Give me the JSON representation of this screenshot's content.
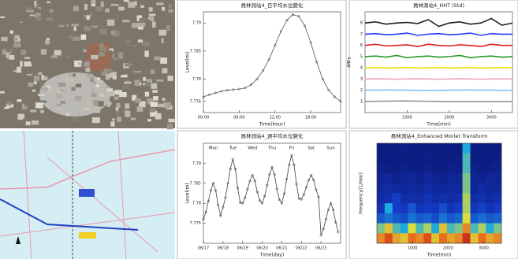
{
  "chart_data": [
    {
      "type": "line",
      "title": "員林測站4_日平均水位變化",
      "xlabel": "Time(hour)",
      "ylabel": "Level(m)",
      "color": "#555555",
      "x": [
        0,
        1,
        2,
        3,
        4,
        5,
        6,
        7,
        8,
        9,
        10,
        11,
        12,
        13,
        14,
        15,
        16,
        17,
        18,
        19,
        20,
        21,
        22,
        23
      ],
      "values": [
        7.7768,
        7.7772,
        7.7775,
        7.7778,
        7.778,
        7.7781,
        7.7782,
        7.7784,
        7.779,
        7.78,
        7.7815,
        7.7835,
        7.786,
        7.7885,
        7.7905,
        7.7915,
        7.7912,
        7.7895,
        7.7865,
        7.783,
        7.78,
        7.778,
        7.7768,
        7.776
      ],
      "xlim": [
        0,
        23
      ],
      "xticks": [
        {
          "value": 0,
          "label": "00:00"
        },
        {
          "value": 6,
          "label": "06:00"
        },
        {
          "value": 12,
          "label": "12:00"
        },
        {
          "value": 18,
          "label": "18:00"
        }
      ],
      "ylim": [
        7.774,
        7.792
      ],
      "yticks": [
        7.776,
        7.78,
        7.785,
        7.79
      ]
    },
    {
      "type": "multiline",
      "title": "員林測站4_HHT (Std)",
      "xlabel": "Time(min)",
      "ylabel": "IMFs",
      "x": [
        0,
        250,
        500,
        750,
        1000,
        1250,
        1500,
        1750,
        2000,
        2250,
        2500,
        2750,
        3000,
        3250,
        3500
      ],
      "xlim": [
        0,
        3500
      ],
      "xticks": [
        1000,
        2000,
        3000
      ],
      "ylim": [
        0,
        9
      ],
      "yticks": [
        1,
        2,
        3,
        4,
        5,
        6,
        7,
        8
      ],
      "series": [
        {
          "color": "#222222",
          "values": [
            8,
            8.1,
            7.9,
            8,
            8.05,
            7.95,
            8.3,
            7.7,
            8,
            8.1,
            7.9,
            8,
            8.4,
            7.8,
            8
          ]
        },
        {
          "color": "#2a3cff",
          "values": [
            7,
            7.05,
            6.95,
            7,
            7.1,
            6.9,
            7,
            7.05,
            6.95,
            7,
            7.1,
            6.9,
            7.05,
            7,
            7
          ]
        },
        {
          "color": "#e02020",
          "values": [
            6,
            6.1,
            5.95,
            6,
            6.05,
            5.9,
            6.1,
            6,
            5.95,
            6.05,
            6,
            5.9,
            6.1,
            6,
            6
          ]
        },
        {
          "color": "#2a9a2a",
          "values": [
            5,
            5.05,
            4.95,
            5.1,
            4.9,
            5,
            5.05,
            4.95,
            5,
            5.1,
            4.9,
            5,
            5.05,
            4.95,
            5
          ]
        },
        {
          "color": "#f0e000",
          "values": [
            4,
            4.02,
            3.98,
            4,
            4.03,
            3.97,
            4,
            4.02,
            3.98,
            4,
            4.03,
            3.97,
            4,
            4.02,
            4
          ]
        },
        {
          "color": "#f0a0c0",
          "values": [
            3,
            3.02,
            3,
            2.98,
            3,
            3.02,
            3,
            2.98,
            3,
            3.02,
            3,
            2.98,
            3,
            3.01,
            3
          ]
        },
        {
          "color": "#80c0f0",
          "values": [
            2,
            2.01,
            2.02,
            2.01,
            2,
            1.99,
            1.98,
            1.99,
            2,
            2.01,
            2.02,
            2.01,
            2,
            1.99,
            2
          ]
        },
        {
          "color": "#9090a0",
          "values": [
            1,
            1.01,
            1.02,
            1.03,
            1.03,
            1.02,
            1.01,
            1,
            0.99,
            0.98,
            0.97,
            0.97,
            0.98,
            0.99,
            1
          ]
        }
      ]
    },
    {
      "type": "line",
      "title": "員林測站4_週平均水位變化",
      "xlabel": "Time(day)",
      "ylabel": "Level(m)",
      "color": "#444444",
      "annotations": [
        {
          "text": "Mon",
          "color": "#6a7ad8"
        },
        {
          "text": "Tue",
          "color": "#6a7ad8"
        },
        {
          "text": "Wed",
          "color": "#6a7ad8"
        },
        {
          "text": "Thu",
          "color": "#6a7ad8"
        },
        {
          "text": "Fri",
          "color": "#6a7ad8"
        },
        {
          "text": "Sat",
          "color": "#6a7ad8"
        },
        {
          "text": "Sun",
          "color": "#e04040"
        }
      ],
      "x": [
        0,
        3,
        6,
        9,
        12,
        15,
        18,
        21,
        24,
        27,
        30,
        33,
        36,
        39,
        42,
        45,
        48,
        51,
        54,
        57,
        60,
        63,
        66,
        69,
        72,
        75,
        78,
        81,
        84,
        87,
        90,
        93,
        96,
        99,
        102,
        105,
        108,
        111,
        114,
        117,
        120,
        123,
        126,
        129,
        132,
        135,
        138,
        141,
        144,
        147,
        150,
        153,
        156,
        159,
        162,
        165
      ],
      "values": [
        7.776,
        7.7778,
        7.7805,
        7.7832,
        7.785,
        7.7832,
        7.7796,
        7.7769,
        7.779,
        7.7814,
        7.785,
        7.7886,
        7.791,
        7.7886,
        7.7838,
        7.7802,
        7.78,
        7.7814,
        7.7835,
        7.7856,
        7.787,
        7.7856,
        7.7828,
        7.7807,
        7.78,
        7.7818,
        7.7845,
        7.7872,
        7.789,
        7.7872,
        7.7836,
        7.7809,
        7.78,
        7.7824,
        7.786,
        7.7896,
        7.792,
        7.7896,
        7.7848,
        7.7812,
        7.781,
        7.7822,
        7.784,
        7.7858,
        7.787,
        7.7858,
        7.7834,
        7.7816,
        7.772,
        7.7736,
        7.776,
        7.7784,
        7.78,
        7.7784,
        7.7752,
        7.7728
      ],
      "xlim": [
        0,
        168
      ],
      "xticks": [
        {
          "value": 0,
          "label": "06/17"
        },
        {
          "value": 24,
          "label": "06/18"
        },
        {
          "value": 48,
          "label": "06/19"
        },
        {
          "value": 72,
          "label": "06/20"
        },
        {
          "value": 96,
          "label": "06/21"
        },
        {
          "value": 120,
          "label": "06/22"
        },
        {
          "value": 144,
          "label": "06/23"
        }
      ],
      "ylim": [
        7.77,
        7.795
      ],
      "yticks": [
        7.775,
        7.78,
        7.785,
        7.79
      ]
    },
    {
      "type": "heatmap",
      "title": "員林測站4_Enhanced Morlet Transform",
      "xlabel": "Time(min)",
      "ylabel": "Frequency(1/min)",
      "xlim": [
        0,
        3500
      ],
      "xticks": [
        1000,
        2000,
        3000
      ],
      "values": [
        [
          0.05,
          0.06,
          0.05,
          0.07,
          0.05,
          0.06,
          0.05,
          0.06,
          0.05,
          0.07,
          0.05,
          0.45,
          0.06,
          0.05,
          0.06,
          0.05
        ],
        [
          0.06,
          0.05,
          0.07,
          0.05,
          0.06,
          0.05,
          0.07,
          0.05,
          0.06,
          0.05,
          0.06,
          0.5,
          0.05,
          0.07,
          0.05,
          0.06
        ],
        [
          0.08,
          0.07,
          0.06,
          0.08,
          0.07,
          0.06,
          0.08,
          0.07,
          0.06,
          0.08,
          0.07,
          0.5,
          0.08,
          0.06,
          0.07,
          0.08
        ],
        [
          0.1,
          0.12,
          0.09,
          0.1,
          0.11,
          0.09,
          0.12,
          0.1,
          0.09,
          0.11,
          0.1,
          0.55,
          0.1,
          0.09,
          0.12,
          0.1
        ],
        [
          0.12,
          0.15,
          0.13,
          0.12,
          0.14,
          0.12,
          0.15,
          0.13,
          0.12,
          0.14,
          0.13,
          0.55,
          0.12,
          0.15,
          0.13,
          0.12
        ],
        [
          0.15,
          0.18,
          0.25,
          0.16,
          0.17,
          0.15,
          0.2,
          0.16,
          0.18,
          0.15,
          0.17,
          0.6,
          0.16,
          0.18,
          0.15,
          0.17
        ],
        [
          0.2,
          0.45,
          0.25,
          0.22,
          0.3,
          0.2,
          0.24,
          0.22,
          0.28,
          0.2,
          0.25,
          0.6,
          0.22,
          0.26,
          0.2,
          0.24
        ],
        [
          0.3,
          0.35,
          0.3,
          0.28,
          0.35,
          0.3,
          0.32,
          0.28,
          0.35,
          0.3,
          0.33,
          0.65,
          0.3,
          0.34,
          0.3,
          0.32
        ],
        [
          0.55,
          0.7,
          0.5,
          0.45,
          0.65,
          0.5,
          0.6,
          0.45,
          0.7,
          0.5,
          0.55,
          0.8,
          0.5,
          0.6,
          0.45,
          0.55
        ],
        [
          0.8,
          0.9,
          0.75,
          0.7,
          0.85,
          0.8,
          0.9,
          0.7,
          0.85,
          0.75,
          0.8,
          0.95,
          0.7,
          0.85,
          0.75,
          0.8
        ]
      ]
    }
  ]
}
